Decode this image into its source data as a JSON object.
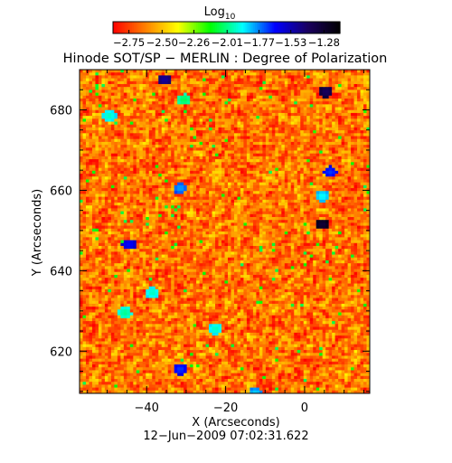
{
  "chart_data": {
    "type": "heatmap",
    "title": "Hinode SOT/SP − MERLIN : Degree of Polarization",
    "xlabel": "X (Arcseconds)",
    "ylabel": "Y (Arcseconds)",
    "footer": "12−Jun−2009 07:02:31.622",
    "xlim": [
      -57,
      16.5
    ],
    "ylim": [
      609.5,
      690
    ],
    "x_ticks": [
      -40,
      -20,
      0
    ],
    "x_tick_labels": [
      "−40",
      "−20",
      "0"
    ],
    "y_ticks": [
      620,
      640,
      660,
      680
    ],
    "y_tick_labels": [
      "620",
      "640",
      "660",
      "680"
    ],
    "colorbar": {
      "label_base": "Log",
      "label_subscript": "10",
      "range": [
        -2.87,
        -1.16
      ],
      "ticks": [
        -2.75,
        -2.5,
        -2.26,
        -2.01,
        -1.77,
        -1.53,
        -1.28
      ],
      "tick_labels": [
        "−2.75",
        "−2.50",
        "−2.26",
        "−2.01",
        "−1.77",
        "−1.53",
        "−1.28"
      ],
      "colormap": [
        "#ff0000",
        "#ff8000",
        "#ffff00",
        "#00ff00",
        "#00ffff",
        "#0000ff",
        "#1a0060",
        "#000000"
      ]
    },
    "dominant_value": -2.65,
    "features": [
      {
        "x": 4.5,
        "y": 651.5,
        "value": -1.3
      },
      {
        "x": 5.5,
        "y": 684.5,
        "value": -1.4
      },
      {
        "x": -35.5,
        "y": 687.5,
        "value": -1.5
      },
      {
        "x": -44.5,
        "y": 646.5,
        "value": -1.65
      },
      {
        "x": 6.5,
        "y": 664.5,
        "value": -1.7
      },
      {
        "x": -31.5,
        "y": 660.5,
        "value": -1.8
      },
      {
        "x": -31.5,
        "y": 615.5,
        "value": -1.7
      },
      {
        "x": -49.5,
        "y": 678.5,
        "value": -1.95
      },
      {
        "x": -38.5,
        "y": 634.5,
        "value": -1.95
      },
      {
        "x": -22.5,
        "y": 625.5,
        "value": -1.95
      },
      {
        "x": 4.5,
        "y": 658.5,
        "value": -1.9
      },
      {
        "x": -45.5,
        "y": 629.5,
        "value": -2.0
      },
      {
        "x": -12.5,
        "y": 609.5,
        "value": -1.85
      },
      {
        "x": -30.5,
        "y": 682.5,
        "value": -2.05
      }
    ]
  }
}
